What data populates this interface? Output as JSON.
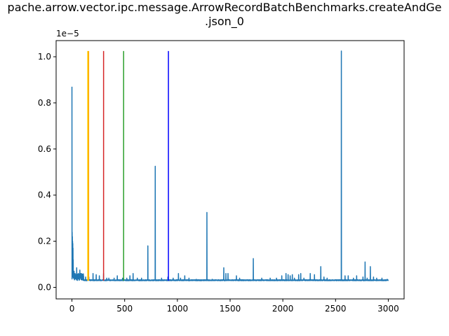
{
  "chart_data": {
    "type": "line",
    "title_line1": "pache.arrow.vector.ipc.message.ArrowRecordBatchBenchmarks.createAndGe",
    "title_line2": ".json_0",
    "xlabel": "",
    "ylabel": "",
    "y_offset_label": "1e−5",
    "xlim": [
      -150,
      3150
    ],
    "ylim": [
      -0.05,
      1.07
    ],
    "x_ticks": [
      0,
      500,
      1000,
      1500,
      2000,
      2500,
      3000
    ],
    "x_tick_labels": [
      "0",
      "500",
      "1000",
      "1500",
      "2000",
      "2500",
      "3000"
    ],
    "y_ticks": [
      0.0,
      0.2,
      0.4,
      0.6,
      0.8,
      1.0
    ],
    "y_tick_labels": [
      "0.0",
      "0.2",
      "0.4",
      "0.6",
      "0.8",
      "1.0"
    ],
    "grid": false,
    "series_color": "#1f77b4",
    "baseline": 0.029,
    "n_points": 3000,
    "spikes": [
      [
        0,
        0.87
      ],
      [
        2,
        0.24
      ],
      [
        4,
        0.22
      ],
      [
        6,
        0.2
      ],
      [
        8,
        0.19
      ],
      [
        10,
        0.17
      ],
      [
        12,
        0.12
      ],
      [
        20,
        0.07
      ],
      [
        30,
        0.06
      ],
      [
        45,
        0.085
      ],
      [
        60,
        0.06
      ],
      [
        75,
        0.075
      ],
      [
        90,
        0.06
      ],
      [
        110,
        0.05
      ],
      [
        130,
        0.045
      ],
      [
        160,
        0.045
      ],
      [
        200,
        0.06
      ],
      [
        230,
        0.055
      ],
      [
        260,
        0.05
      ],
      [
        300,
        0.06
      ],
      [
        330,
        0.04
      ],
      [
        350,
        0.04
      ],
      [
        400,
        0.04
      ],
      [
        430,
        0.05
      ],
      [
        480,
        0.04
      ],
      [
        520,
        0.04
      ],
      [
        550,
        0.05
      ],
      [
        580,
        0.06
      ],
      [
        620,
        0.04
      ],
      [
        660,
        0.04
      ],
      [
        720,
        0.18
      ],
      [
        790,
        0.525
      ],
      [
        850,
        0.04
      ],
      [
        910,
        0.045
      ],
      [
        960,
        0.04
      ],
      [
        1010,
        0.06
      ],
      [
        1030,
        0.04
      ],
      [
        1070,
        0.05
      ],
      [
        1110,
        0.04
      ],
      [
        1180,
        0.035
      ],
      [
        1280,
        0.325
      ],
      [
        1330,
        0.035
      ],
      [
        1440,
        0.085
      ],
      [
        1460,
        0.06
      ],
      [
        1480,
        0.06
      ],
      [
        1560,
        0.05
      ],
      [
        1590,
        0.04
      ],
      [
        1720,
        0.125
      ],
      [
        1800,
        0.04
      ],
      [
        1880,
        0.04
      ],
      [
        1940,
        0.04
      ],
      [
        1990,
        0.05
      ],
      [
        2030,
        0.06
      ],
      [
        2050,
        0.055
      ],
      [
        2070,
        0.05
      ],
      [
        2090,
        0.055
      ],
      [
        2110,
        0.04
      ],
      [
        2150,
        0.055
      ],
      [
        2170,
        0.06
      ],
      [
        2200,
        0.04
      ],
      [
        2260,
        0.06
      ],
      [
        2300,
        0.055
      ],
      [
        2360,
        0.09
      ],
      [
        2390,
        0.045
      ],
      [
        2420,
        0.04
      ],
      [
        2555,
        1.025
      ],
      [
        2590,
        0.05
      ],
      [
        2620,
        0.05
      ],
      [
        2670,
        0.04
      ],
      [
        2700,
        0.05
      ],
      [
        2760,
        0.045
      ],
      [
        2780,
        0.11
      ],
      [
        2800,
        0.04
      ],
      [
        2830,
        0.09
      ],
      [
        2860,
        0.045
      ],
      [
        2890,
        0.04
      ],
      [
        2940,
        0.04
      ],
      [
        2990,
        0.035
      ]
    ],
    "vertical_lines": [
      {
        "x": 150,
        "color": "#ffd700"
      },
      {
        "x": 158,
        "color": "#ffa500"
      },
      {
        "x": 300,
        "color": "#d62728"
      },
      {
        "x": 490,
        "color": "#2ca02c"
      },
      {
        "x": 915,
        "color": "#0000ff"
      }
    ],
    "vertical_line_ymax": 1.025
  }
}
